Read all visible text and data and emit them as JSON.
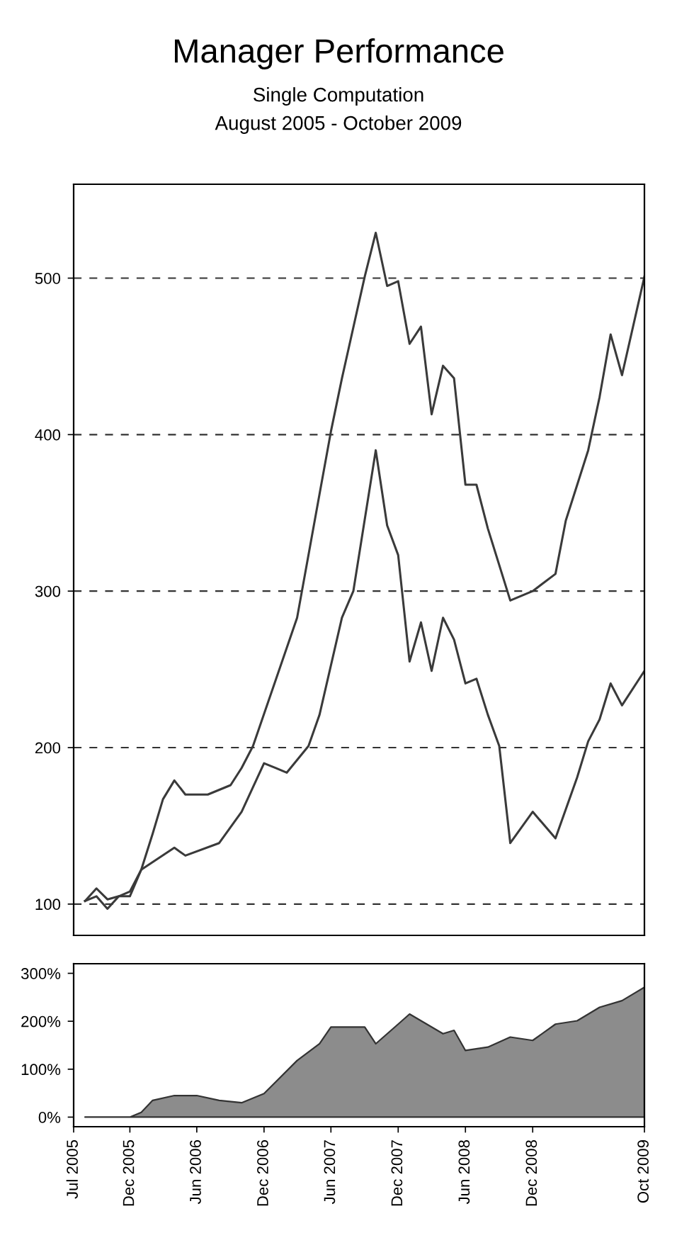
{
  "chart_data": [
    {
      "type": "line",
      "title": "Manager Performance",
      "subtitle": "Single Computation",
      "annotations": [
        "August 2005 - October 2009"
      ],
      "xlim": [
        "2005-07-01",
        "2009-10-01"
      ],
      "ylim": [
        80,
        560
      ],
      "yticks": [
        100,
        200,
        300,
        400,
        500
      ],
      "grid": "y",
      "line_style": "solid",
      "tick_labels": "y",
      "series": [
        {
          "color": "#3a3a3a",
          "x": [
            "2005-08",
            "2005-09",
            "2005-10",
            "2005-11",
            "2005-12",
            "2006-01",
            "2006-02",
            "2006-03",
            "2006-04",
            "2006-05",
            "2006-07",
            "2006-09",
            "2006-10",
            "2006-11",
            "2007-03",
            "2007-05",
            "2007-06",
            "2007-07",
            "2007-09",
            "2007-10",
            "2007-11",
            "2007-12",
            "2008-01",
            "2008-02",
            "2008-03",
            "2008-04",
            "2008-05",
            "2008-06",
            "2008-07",
            "2008-08",
            "2008-10",
            "2008-12",
            "2009-02",
            "2009-03",
            "2009-05",
            "2009-06",
            "2009-07",
            "2009-08",
            "2009-10"
          ],
          "values": [
            102,
            110,
            103,
            105,
            108,
            122,
            145,
            167,
            179,
            170,
            170,
            176,
            187,
            201,
            283,
            362,
            402,
            436,
            501,
            529,
            495,
            498,
            458,
            469,
            413,
            444,
            436,
            368,
            368,
            340,
            294,
            300,
            311,
            345,
            390,
            424,
            464,
            438,
            501
          ]
        },
        {
          "color": "#3a3a3a",
          "x": [
            "2005-08",
            "2005-09",
            "2005-10",
            "2005-11",
            "2005-12",
            "2006-01",
            "2006-04",
            "2006-05",
            "2006-08",
            "2006-10",
            "2006-12",
            "2007-01",
            "2007-02",
            "2007-04",
            "2007-05",
            "2007-07",
            "2007-08",
            "2007-10",
            "2007-11",
            "2007-12",
            "2008-01",
            "2008-02",
            "2008-03",
            "2008-04",
            "2008-05",
            "2008-06",
            "2008-07",
            "2008-08",
            "2008-09",
            "2008-10",
            "2008-12",
            "2009-02",
            "2009-04",
            "2009-05",
            "2009-06",
            "2009-07",
            "2009-08",
            "2009-10"
          ],
          "values": [
            102,
            105,
            97,
            105,
            105,
            122,
            136,
            131,
            139,
            159,
            190,
            187,
            184,
            201,
            221,
            283,
            300,
            390,
            342,
            323,
            255,
            280,
            249,
            283,
            269,
            241,
            244,
            221,
            201,
            139,
            159,
            142,
            181,
            204,
            218,
            241,
            227,
            249
          ]
        }
      ]
    },
    {
      "type": "area",
      "xlim": [
        "2005-07-01",
        "2009-10-01"
      ],
      "xticks": [
        {
          "value": "2005-07-01",
          "label": "Jul 2005"
        },
        {
          "value": "2005-12-01",
          "label": "Dec 2005"
        },
        {
          "value": "2006-06-01",
          "label": "Jun 2006"
        },
        {
          "value": "2006-12-01",
          "label": "Dec 2006"
        },
        {
          "value": "2007-06-01",
          "label": "Jun 2007"
        },
        {
          "value": "2007-12-01",
          "label": "Dec 2007"
        },
        {
          "value": "2008-06-01",
          "label": "Jun 2008"
        },
        {
          "value": "2008-12-01",
          "label": "Dec 2008"
        },
        {
          "value": "2009-10-01",
          "label": "Oct 2009"
        }
      ],
      "ylim": [
        -20,
        320
      ],
      "yticks": [
        {
          "value": 0,
          "label": "0%"
        },
        {
          "value": 100,
          "label": "100%"
        },
        {
          "value": 200,
          "label": "200%"
        },
        {
          "value": 300,
          "label": "300%"
        }
      ],
      "series": [
        {
          "color": "#8c8c8c",
          "x": [
            "2005-08",
            "2005-12",
            "2006-01",
            "2006-02",
            "2006-04",
            "2006-06",
            "2006-08",
            "2006-10",
            "2006-12",
            "2007-03",
            "2007-05",
            "2007-06",
            "2007-09",
            "2007-10",
            "2007-12",
            "2008-01",
            "2008-04",
            "2008-05",
            "2008-06",
            "2008-08",
            "2008-10",
            "2008-12",
            "2009-02",
            "2009-04",
            "2009-06",
            "2009-08",
            "2009-10"
          ],
          "values": [
            0,
            0,
            10,
            35,
            45,
            45,
            35,
            30,
            49,
            118,
            153,
            188,
            188,
            153,
            194,
            215,
            174,
            181,
            139,
            146,
            167,
            160,
            194,
            201,
            229,
            243,
            271
          ]
        }
      ]
    }
  ]
}
